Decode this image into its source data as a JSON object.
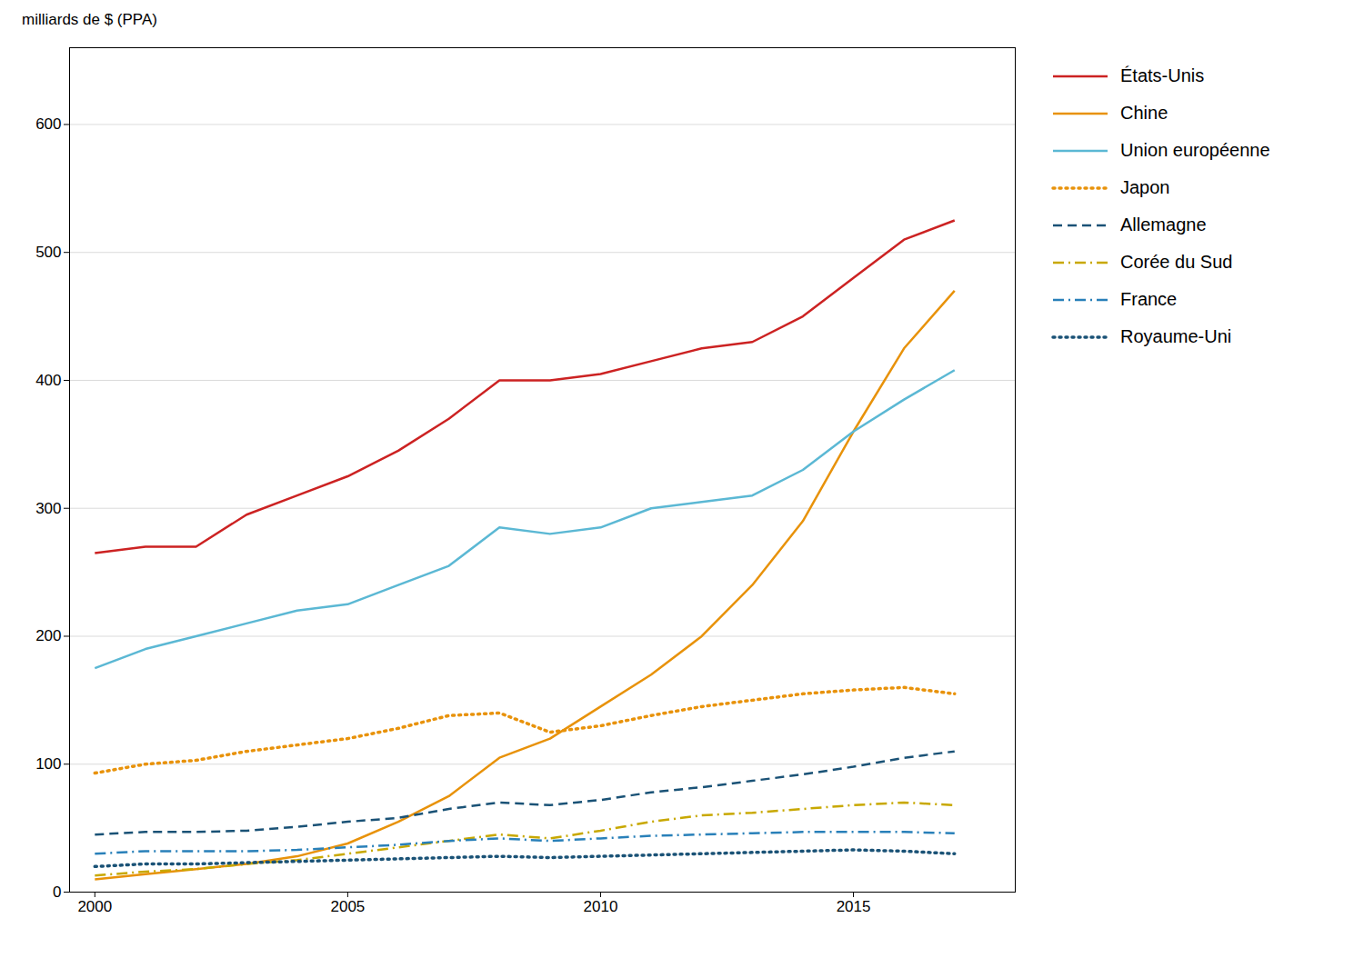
{
  "chart_data": {
    "type": "line",
    "ylabel": "milliards de $ (PPA)",
    "x": [
      2000,
      2001,
      2002,
      2003,
      2004,
      2005,
      2006,
      2007,
      2008,
      2009,
      2010,
      2011,
      2012,
      2013,
      2014,
      2015,
      2016,
      2017
    ],
    "series": [
      {
        "name": "États-Unis",
        "color": "#cc2222",
        "line_style": "solid",
        "values": [
          265,
          270,
          270,
          295,
          310,
          325,
          345,
          370,
          400,
          400,
          405,
          415,
          425,
          430,
          450,
          480,
          510,
          525
        ]
      },
      {
        "name": "Chine",
        "color": "#e8920a",
        "line_style": "solid",
        "values": [
          10,
          14,
          18,
          22,
          28,
          38,
          55,
          75,
          105,
          120,
          145,
          170,
          200,
          240,
          290,
          360,
          425,
          470
        ]
      },
      {
        "name": "Union européenne",
        "color": "#5bb8d4",
        "line_style": "solid",
        "values": [
          175,
          190,
          200,
          210,
          220,
          225,
          240,
          255,
          285,
          280,
          285,
          300,
          305,
          310,
          330,
          360,
          385,
          408
        ]
      },
      {
        "name": "Japon",
        "color": "#e8920a",
        "line_style": "dotted",
        "values": [
          93,
          100,
          103,
          110,
          115,
          120,
          128,
          138,
          140,
          125,
          130,
          138,
          145,
          150,
          155,
          158,
          160,
          155
        ]
      },
      {
        "name": "Allemagne",
        "color": "#1a5276",
        "line_style": "dashed",
        "values": [
          45,
          47,
          47,
          48,
          51,
          55,
          58,
          65,
          70,
          68,
          72,
          78,
          82,
          87,
          92,
          98,
          105,
          110
        ]
      },
      {
        "name": "Corée du Sud",
        "color": "#c8a800",
        "line_style": "dashdot",
        "values": [
          13,
          16,
          18,
          22,
          25,
          30,
          35,
          40,
          45,
          42,
          48,
          55,
          60,
          62,
          65,
          68,
          70,
          68
        ]
      },
      {
        "name": "France",
        "color": "#2980b9",
        "line_style": "dashdot",
        "values": [
          30,
          32,
          32,
          32,
          33,
          35,
          37,
          40,
          42,
          40,
          42,
          44,
          45,
          46,
          47,
          47,
          47,
          46
        ]
      },
      {
        "name": "Royaume-Uni",
        "color": "#1a5276",
        "line_style": "dotted",
        "values": [
          20,
          22,
          22,
          23,
          24,
          25,
          26,
          27,
          28,
          27,
          28,
          29,
          30,
          31,
          32,
          33,
          32,
          30
        ]
      }
    ],
    "xlim": [
      1999.5,
      2018.2
    ],
    "xticks": [
      2000,
      2005,
      2010,
      2015
    ],
    "ylim": [
      0,
      660
    ],
    "yticks": [
      0,
      100,
      200,
      300,
      400,
      500,
      600
    ],
    "grid": "y",
    "legend": "right"
  }
}
